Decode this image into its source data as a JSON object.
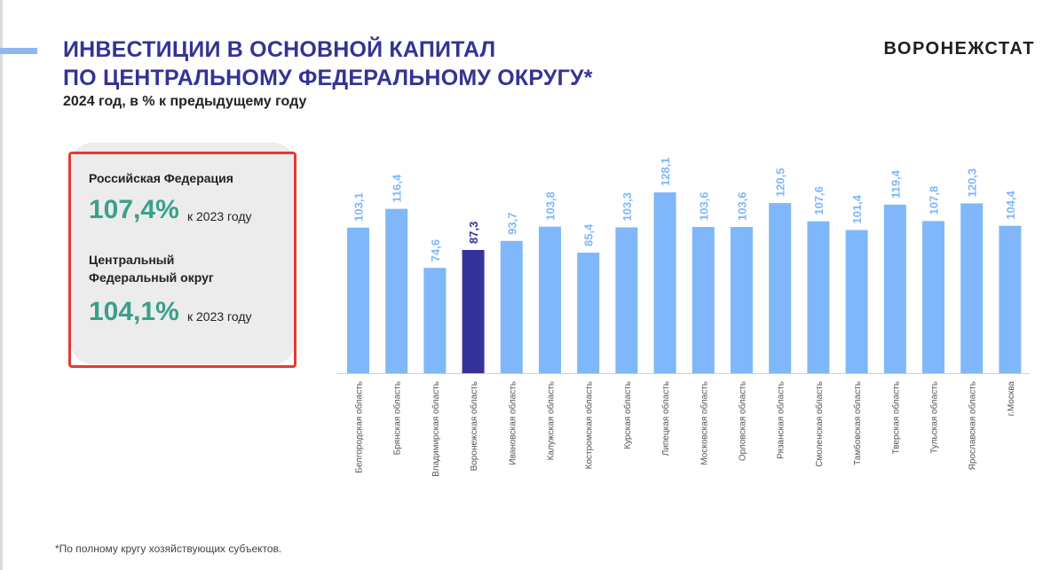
{
  "header": {
    "title_line1": "ИНВЕСТИЦИИ В ОСНОВНОЙ КАПИТАЛ",
    "title_line2": "ПО ЦЕНТРАЛЬНОМУ ФЕДЕРАЛЬНОМУ ОКРУГУ*",
    "subtitle": "2024 год, в % к предыдущему году",
    "brand": "ВОРОНЕЖСТАТ"
  },
  "summary": {
    "rf_label": "Российская Федерация",
    "rf_value": "107,4%",
    "rf_note": "к 2023 году",
    "cfo_label_line1": "Центральный",
    "cfo_label_line2": "Федеральный округ",
    "cfo_value": "104,1%",
    "cfo_note": "к 2023 году"
  },
  "footnote": "*По полному кругу хозяйствующих субъектов.",
  "colors": {
    "bar": "#7fb7fa",
    "highlight_bar": "#35339a",
    "label": "#7fb7fa",
    "highlight_label": "#35339a",
    "value_text": "#3aa08b",
    "frame": "#e23b32"
  },
  "chart_data": {
    "type": "bar",
    "categories": [
      "Белгородская область",
      "Брянская область",
      "Владимирская область",
      "Воронежская область",
      "Ивановская область",
      "Калужская область",
      "Костромская область",
      "Курская область",
      "Липецкая область",
      "Московская область",
      "Орловская область",
      "Рязанская область",
      "Смоленская область",
      "Тамбовская область",
      "Тверская область",
      "Тульская область",
      "Ярославская область",
      "г.Москва"
    ],
    "values": [
      103.1,
      116.4,
      74.6,
      87.3,
      93.7,
      103.8,
      85.4,
      103.3,
      128.1,
      103.6,
      103.6,
      120.5,
      107.6,
      101.4,
      119.4,
      107.8,
      120.3,
      104.4
    ],
    "labels": [
      "103,1",
      "116,4",
      "74,6",
      "87,3",
      "93,7",
      "103,8",
      "85,4",
      "103,3",
      "128,1",
      "103,6",
      "103,6",
      "120,5",
      "107,6",
      "101,4",
      "119,4",
      "107,8",
      "120,3",
      "104,4"
    ],
    "highlight": "Воронежская область",
    "title": "",
    "xlabel": "",
    "ylabel": "",
    "ylim": [
      0,
      128.1
    ],
    "grid": false
  }
}
